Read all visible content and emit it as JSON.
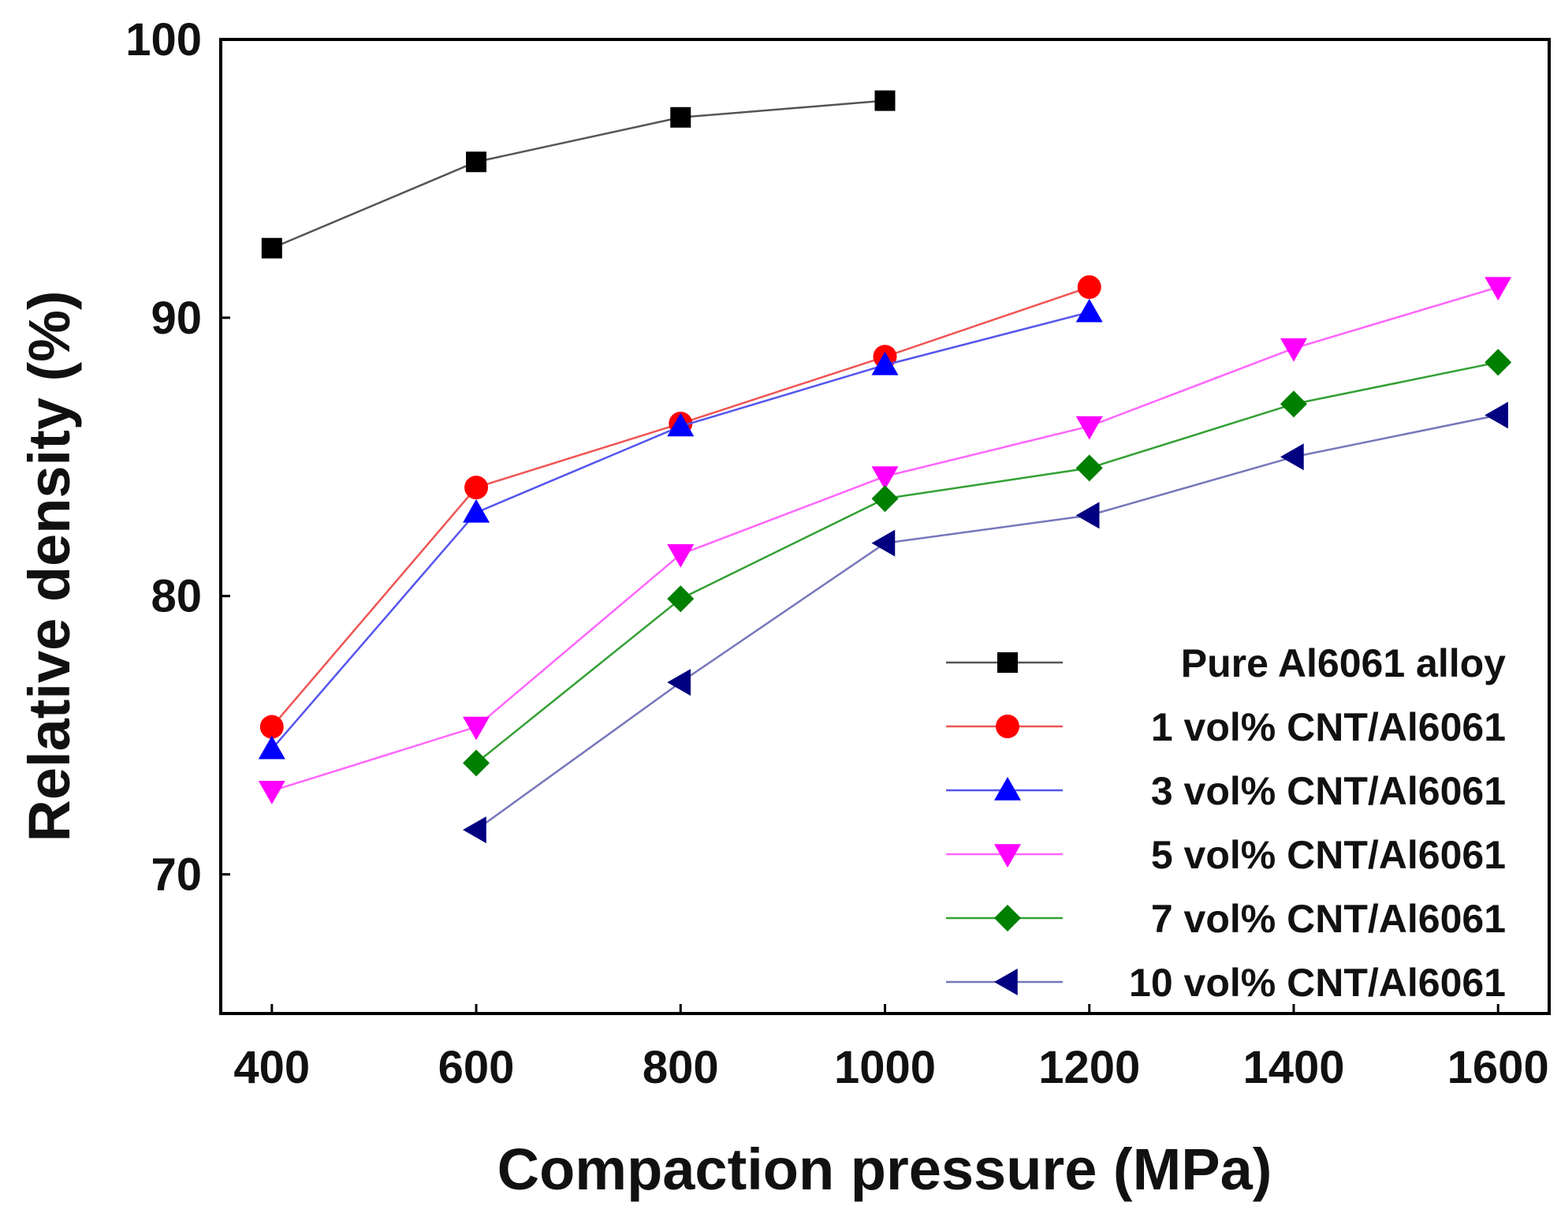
{
  "chart_data": {
    "type": "line",
    "title": "",
    "xlabel": "Compaction pressure (MPa)",
    "ylabel": "Relative density (%)",
    "xlim": [
      350,
      1650
    ],
    "ylim": [
      65,
      100
    ],
    "xticks": [
      400,
      600,
      800,
      1000,
      1200,
      1400,
      1600
    ],
    "yticks": [
      70,
      80,
      90,
      100
    ],
    "grid": false,
    "legend_position": "bottom-right",
    "series": [
      {
        "name": "Pure Al6061 alloy",
        "color": "#000000",
        "line_color": "#555555",
        "marker": "square",
        "x": [
          400,
          600,
          800,
          1000
        ],
        "y": [
          92.5,
          95.6,
          97.2,
          97.8
        ]
      },
      {
        "name": "1 vol% CNT/Al6061",
        "color": "#ff0000",
        "line_color": "#ee5555",
        "marker": "circle",
        "x": [
          400,
          600,
          800,
          1000,
          1200
        ],
        "y": [
          75.3,
          83.9,
          86.2,
          88.6,
          91.1
        ]
      },
      {
        "name": "3 vol% CNT/Al6061",
        "color": "#0000ff",
        "line_color": "#5555ee",
        "marker": "triangle-up",
        "x": [
          400,
          600,
          800,
          1000,
          1200
        ],
        "y": [
          74.5,
          83.0,
          86.1,
          88.3,
          90.2
        ]
      },
      {
        "name": "5 vol% CNT/Al6061",
        "color": "#ff00ff",
        "line_color": "#ff66ff",
        "marker": "triangle-down",
        "x": [
          400,
          600,
          800,
          1000,
          1200,
          1400,
          1600
        ],
        "y": [
          73.0,
          75.3,
          81.5,
          84.3,
          86.1,
          88.9,
          91.1
        ]
      },
      {
        "name": "7 vol% CNT/Al6061",
        "color": "#008000",
        "line_color": "#33a033",
        "marker": "diamond",
        "x": [
          600,
          800,
          1000,
          1200,
          1400,
          1600
        ],
        "y": [
          74.0,
          79.9,
          83.5,
          84.6,
          86.9,
          88.4
        ]
      },
      {
        "name": "10 vol% CNT/Al6061",
        "color": "#000080",
        "line_color": "#7777bb",
        "marker": "triangle-left",
        "x": [
          600,
          800,
          1000,
          1200,
          1400,
          1600
        ],
        "y": [
          71.6,
          76.9,
          81.9,
          82.9,
          85.0,
          86.5
        ]
      }
    ]
  }
}
